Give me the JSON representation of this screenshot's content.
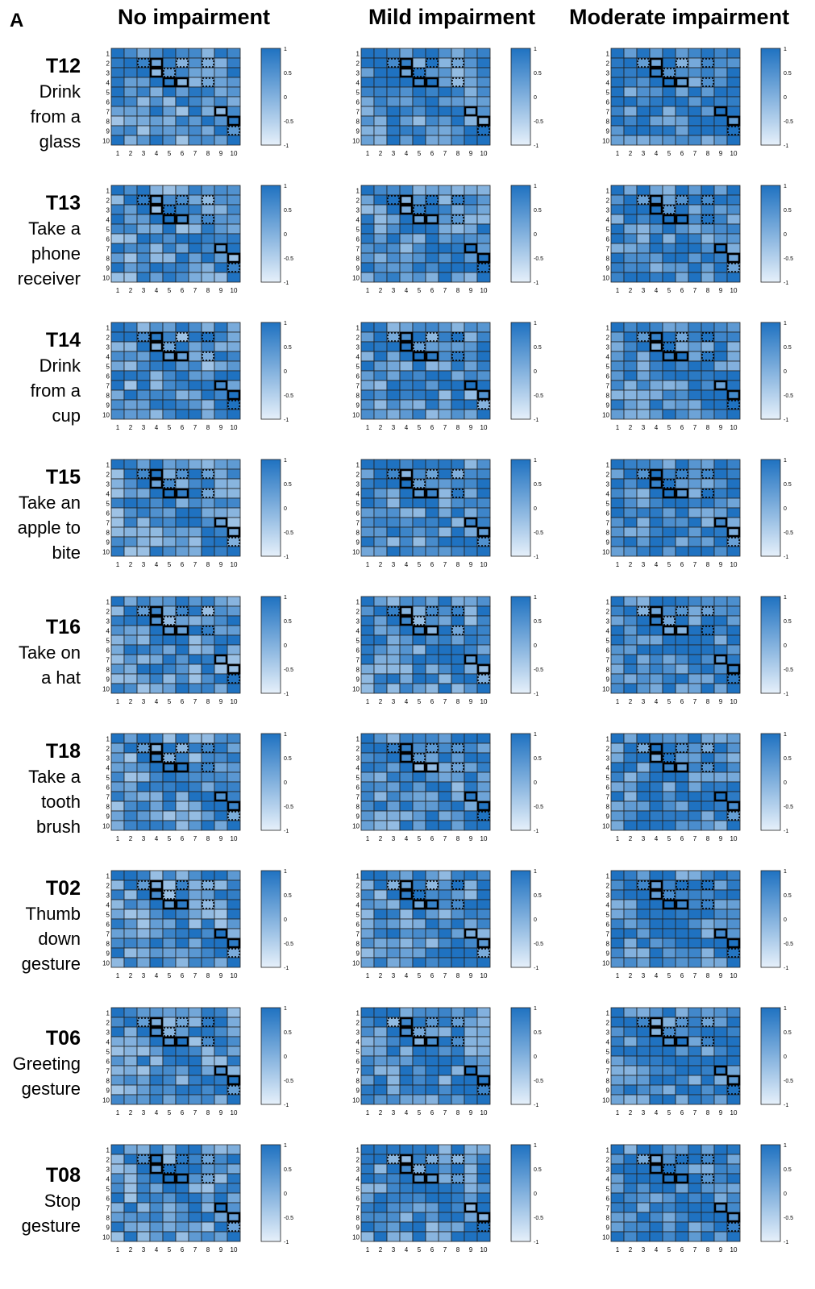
{
  "panel_letter": "A",
  "columns": [
    "No impairment",
    "Mild impairment",
    "Moderate impairment"
  ],
  "rows": [
    {
      "code": "T12",
      "lines": [
        "Drink",
        "from a",
        "glass"
      ]
    },
    {
      "code": "T13",
      "lines": [
        "Take a",
        "phone",
        "receiver"
      ]
    },
    {
      "code": "T14",
      "lines": [
        "Drink",
        "from a",
        "cup"
      ]
    },
    {
      "code": "T15",
      "lines": [
        "Take an",
        "apple to",
        "bite"
      ]
    },
    {
      "code": "T16",
      "lines": [
        "Take on",
        "a hat"
      ]
    },
    {
      "code": "T18",
      "lines": [
        "Take a",
        "tooth",
        "brush"
      ]
    },
    {
      "code": "T02",
      "lines": [
        "Thumb",
        "down",
        "gesture"
      ]
    },
    {
      "code": "T06",
      "lines": [
        "Greeting",
        "gesture"
      ]
    },
    {
      "code": "T08",
      "lines": [
        "Stop",
        "gesture"
      ]
    }
  ],
  "chart_data": {
    "type": "heatmap",
    "matrix_size": 10,
    "tick_labels": [
      "1",
      "2",
      "3",
      "4",
      "5",
      "6",
      "7",
      "8",
      "9",
      "10"
    ],
    "colorbar": {
      "ticks": [
        "1",
        "0.5",
        "0",
        "-0.5",
        "-1"
      ],
      "min": -1,
      "max": 1
    },
    "colors": {
      "low": "#e6f0fa",
      "high": "#1f72c1",
      "grid": "#222222",
      "highlight": "#000000"
    }
  }
}
